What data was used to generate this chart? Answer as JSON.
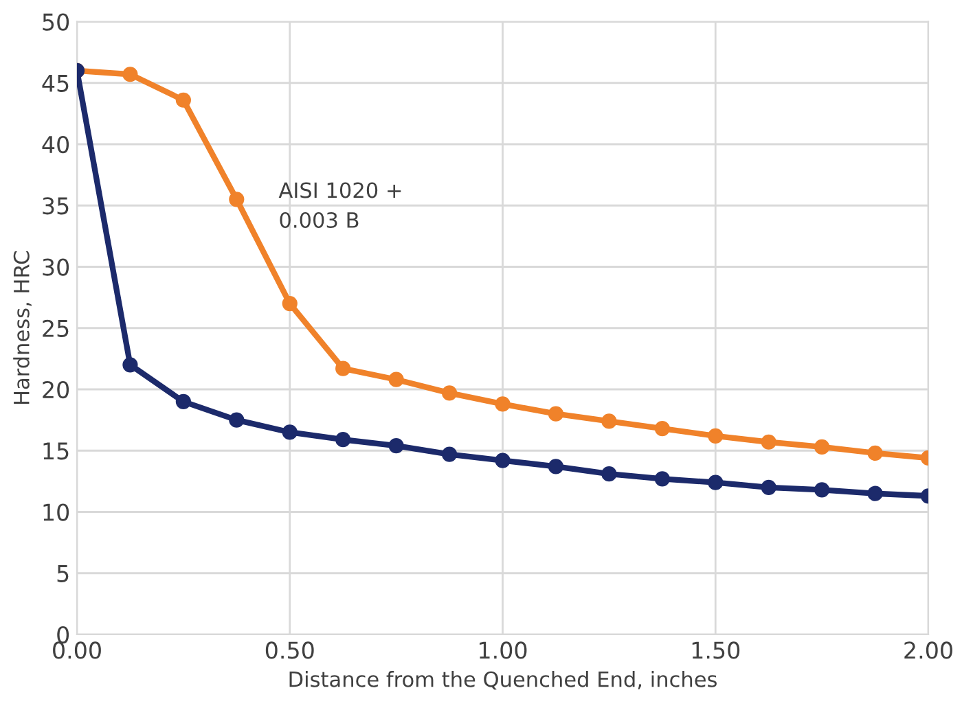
{
  "chart_data": {
    "type": "line",
    "xlabel": "Distance from the Quenched End, inches",
    "ylabel": "Hardness, HRC",
    "x": [
      0,
      0.125,
      0.25,
      0.375,
      0.5,
      0.625,
      0.75,
      0.875,
      1.0,
      1.125,
      1.25,
      1.375,
      1.5,
      1.625,
      1.75,
      1.875,
      2.0
    ],
    "series": [
      {
        "name": "AISI 1020 +\n0.003 B",
        "color": "#f0822a",
        "values": [
          46,
          45.7,
          43.6,
          35.5,
          27,
          21.7,
          20.8,
          19.7,
          18.8,
          18,
          17.4,
          16.8,
          16.2,
          15.7,
          15.3,
          14.8,
          14.4
        ]
      },
      {
        "color": "#1c2a6b",
        "values": [
          46,
          22,
          19,
          17.5,
          16.5,
          15.9,
          15.4,
          14.7,
          14.2,
          13.7,
          13.1,
          12.7,
          12.4,
          12.0,
          11.8,
          11.5,
          11.3
        ]
      }
    ],
    "xlim": [
      0,
      2
    ],
    "xticks": [
      {
        "value": 0,
        "label": "0.00"
      },
      {
        "value": 0.5,
        "label": "0.50"
      },
      {
        "value": 1,
        "label": "1.00"
      },
      {
        "value": 1.5,
        "label": "1.50"
      },
      {
        "value": 2,
        "label": "2.00"
      }
    ],
    "ylim": [
      0,
      50
    ],
    "yticks": [
      0,
      5,
      10,
      15,
      20,
      25,
      30,
      35,
      40,
      45,
      50
    ],
    "grid": true,
    "marker": "circle",
    "line_style": "solid"
  }
}
